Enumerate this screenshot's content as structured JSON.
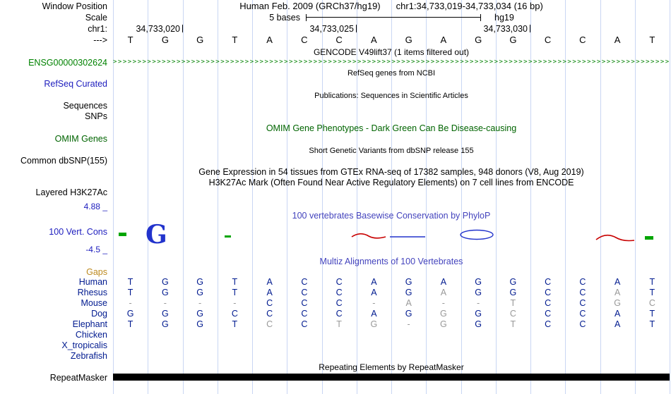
{
  "header": {
    "window_position_label": "Window Position",
    "assembly": "Human Feb. 2009 (GRCh37/hg19)",
    "position": "chr1:34,733,019-34,733,034 (16 bp)",
    "scale_label": "Scale",
    "scale_value": "5 bases",
    "scale_assembly": "hg19",
    "chrom_label": "chr1:",
    "ruler_ticks": [
      "34,733,020",
      "34,733,025",
      "34,733,030"
    ],
    "strand_label": "--->",
    "sequence": [
      "T",
      "G",
      "G",
      "T",
      "A",
      "C",
      "C",
      "A",
      "G",
      "A",
      "G",
      "G",
      "C",
      "C",
      "A",
      "T"
    ]
  },
  "tracks": {
    "gencode": {
      "title": "GENCODE V49lift37 (1 items filtered out)",
      "item_label": "ENSG00000302624",
      "strand_char": ">"
    },
    "refseq": {
      "title": "RefSeq genes from NCBI",
      "label": "RefSeq Curated"
    },
    "publications": {
      "title": "Publications: Sequences in Scientific Articles",
      "sequences_label": "Sequences",
      "snps_label": "SNPs"
    },
    "omim": {
      "title": "OMIM Gene Phenotypes - Dark Green Can Be Disease-causing",
      "label": "OMIM Genes"
    },
    "dbsnp": {
      "title": "Short Genetic Variants from dbSNP release 155",
      "label": "Common dbSNP(155)"
    },
    "gtex": {
      "title": "Gene Expression in 54 tissues from GTEx RNA-seq of 17382 samples, 948 donors (V8, Aug 2019)"
    },
    "h3k27ac": {
      "title": "H3K27Ac Mark (Often Found Near Active Regulatory Elements) on 7 cell lines from ENCODE",
      "label": "Layered H3K27Ac"
    },
    "phylop": {
      "title": "100 vertebrates Basewise Conservation by PhyloP",
      "label": "100 Vert. Cons",
      "max_label": "4.88 _",
      "min_label": "-4.5 _"
    },
    "multiz": {
      "title": "Multiz Alignments of 100 Vertebrates",
      "gaps_label": "Gaps",
      "rows": [
        {
          "species": "Human",
          "bases": [
            "T",
            "G",
            "G",
            "T",
            "A",
            "C",
            "C",
            "A",
            "G",
            "A",
            "G",
            "G",
            "C",
            "C",
            "A",
            "T"
          ],
          "muted": []
        },
        {
          "species": "Rhesus",
          "bases": [
            "T",
            "G",
            "G",
            "T",
            "A",
            "C",
            "C",
            "A",
            "G",
            "A",
            "G",
            "G",
            "C",
            "C",
            "A",
            "T"
          ],
          "muted": [
            9,
            14
          ]
        },
        {
          "species": "Mouse",
          "bases": [
            "-",
            "-",
            "-",
            "-",
            "C",
            "C",
            "C",
            "-",
            "A",
            "-",
            "-",
            "T",
            "C",
            "C",
            "G",
            "C"
          ],
          "muted": [
            0,
            1,
            2,
            3,
            7,
            8,
            9,
            10,
            11,
            14,
            15
          ]
        },
        {
          "species": "Dog",
          "bases": [
            "G",
            "G",
            "G",
            "C",
            "C",
            "C",
            "C",
            "A",
            "G",
            "G",
            "G",
            "C",
            "C",
            "C",
            "A",
            "T"
          ],
          "muted": [
            9,
            11
          ]
        },
        {
          "species": "Elephant",
          "bases": [
            "T",
            "G",
            "G",
            "T",
            "C",
            "C",
            "T",
            "G",
            "-",
            "G",
            "G",
            "T",
            "C",
            "C",
            "A",
            "T"
          ],
          "muted": [
            4,
            6,
            7,
            8,
            9,
            11
          ]
        },
        {
          "species": "Chicken",
          "bases": [
            "",
            "",
            "",
            "",
            "",
            "",
            "",
            "",
            "",
            "",
            "",
            "",
            "",
            "",
            "",
            ""
          ],
          "muted": []
        },
        {
          "species": "X_tropicalis",
          "bases": [
            "",
            "",
            "",
            "",
            "",
            "",
            "",
            "",
            "",
            "",
            "",
            "",
            "",
            "",
            "",
            ""
          ],
          "muted": []
        },
        {
          "species": "Zebrafish",
          "bases": [
            "",
            "",
            "",
            "",
            "",
            "",
            "",
            "",
            "",
            "",
            "",
            "",
            "",
            "",
            "",
            ""
          ],
          "muted": []
        }
      ]
    },
    "repeatmasker": {
      "title": "Repeating Elements by RepeatMasker",
      "label": "RepeatMasker"
    }
  },
  "colors": {
    "track_blue": "#1d1dbe",
    "title_blue": "#4343bd",
    "species_blue": "#001a8f",
    "gene_green": "#008200",
    "omim_green": "#006400",
    "gaps_orange": "#bd8a20",
    "gridline": "#c9d6f3",
    "muted_gray": "#999999",
    "cons_green": "#00a500",
    "cons_red": "#c80000",
    "cons_blue": "#2233cc",
    "bar_black": "#000000"
  }
}
